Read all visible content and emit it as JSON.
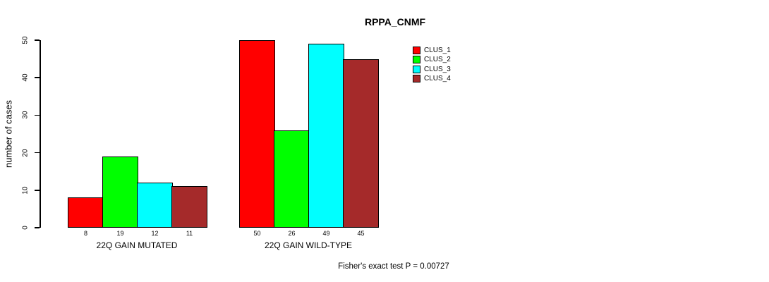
{
  "chart_data": {
    "type": "bar",
    "title": "RPPA_CNMF",
    "ylabel": "number of cases",
    "ylim": [
      0,
      50
    ],
    "yticks": [
      0,
      10,
      20,
      30,
      40,
      50
    ],
    "grid": false,
    "legend_position": "right-of-plot",
    "bar_border_color": "#000000",
    "bar_value_labels_shown": true,
    "categories": [
      "22Q GAIN MUTATED",
      "22Q GAIN WILD-TYPE"
    ],
    "series": [
      {
        "name": "CLUS_1",
        "color": "#FF0000",
        "values": [
          8,
          50
        ]
      },
      {
        "name": "CLUS_2",
        "color": "#00FF00",
        "values": [
          19,
          26
        ]
      },
      {
        "name": "CLUS_3",
        "color": "#00FFFF",
        "values": [
          12,
          49
        ]
      },
      {
        "name": "CLUS_4",
        "color": "#A52A2A",
        "values": [
          11,
          45
        ]
      }
    ]
  },
  "footer": {
    "text": "Fisher's exact test P = 0.00727"
  }
}
